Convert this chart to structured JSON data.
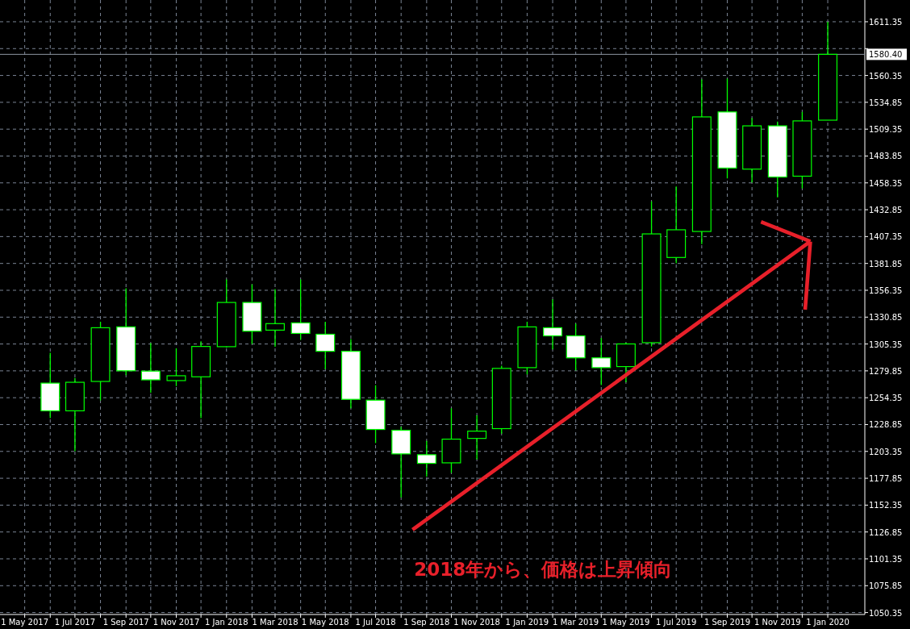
{
  "chart_data": {
    "type": "candlestick",
    "color": "#00ff00",
    "x": [
      "2017-06",
      "2017-07",
      "2017-08",
      "2017-09",
      "2017-10",
      "2017-11",
      "2017-12",
      "2018-01",
      "2018-02",
      "2018-03",
      "2018-04",
      "2018-05",
      "2018-06",
      "2018-07",
      "2018-08",
      "2018-09",
      "2018-10",
      "2018-11",
      "2018-12",
      "2019-01",
      "2019-02",
      "2019-03",
      "2019-04",
      "2019-05",
      "2019-06",
      "2019-07",
      "2019-08",
      "2019-09",
      "2019-10",
      "2019-11",
      "2019-12",
      "2020-01"
    ],
    "ohlc": [
      [
        1268.2,
        1296.9,
        1235.0,
        1241.9
      ],
      [
        1241.9,
        1273.1,
        1203.6,
        1269.0
      ],
      [
        1269.8,
        1326.5,
        1251.8,
        1320.8
      ],
      [
        1321.6,
        1358.2,
        1275.7,
        1279.9
      ],
      [
        1279.6,
        1306.1,
        1259.0,
        1271.3
      ],
      [
        1270.6,
        1301.2,
        1265.4,
        1275.2
      ],
      [
        1274.2,
        1307.9,
        1235.0,
        1303.0
      ],
      [
        1302.8,
        1366.6,
        1302.0,
        1344.8
      ],
      [
        1344.8,
        1362.0,
        1305.3,
        1317.5
      ],
      [
        1318.5,
        1357.4,
        1302.8,
        1324.7
      ],
      [
        1325.4,
        1366.6,
        1309.2,
        1315.4
      ],
      [
        1314.6,
        1326.5,
        1281.4,
        1298.4
      ],
      [
        1298.4,
        1310.0,
        1244.3,
        1252.8
      ],
      [
        1252.0,
        1266.2,
        1211.3,
        1224.2
      ],
      [
        1223.4,
        1226.8,
        1159.8,
        1201.0
      ],
      [
        1200.2,
        1213.4,
        1179.4,
        1192.0
      ],
      [
        1192.5,
        1244.3,
        1183.0,
        1215.0
      ],
      [
        1215.7,
        1237.6,
        1195.8,
        1222.6
      ],
      [
        1225.0,
        1284.8,
        1220.3,
        1282.2
      ],
      [
        1282.9,
        1326.5,
        1276.5,
        1321.6
      ],
      [
        1320.8,
        1347.8,
        1300.2,
        1313.1
      ],
      [
        1313.1,
        1324.7,
        1280.3,
        1292.2
      ],
      [
        1292.2,
        1311.0,
        1266.4,
        1282.9
      ],
      [
        1283.9,
        1306.5,
        1269.0,
        1305.4
      ],
      [
        1306.6,
        1440.8,
        1303.0,
        1409.9
      ],
      [
        1387.5,
        1454.9,
        1381.9,
        1413.8
      ],
      [
        1412.2,
        1556.5,
        1400.1,
        1521.0
      ],
      [
        1525.7,
        1557.3,
        1462.6,
        1472.4
      ],
      [
        1471.4,
        1519.8,
        1458.8,
        1512.5
      ],
      [
        1512.5,
        1516.6,
        1444.6,
        1463.9
      ],
      [
        1464.7,
        1525.7,
        1453.1,
        1517.2
      ],
      [
        1517.9,
        1611.3,
        1517.9,
        1580.4
      ]
    ],
    "xlim": [
      "2017-04-01",
      "2020-02-15"
    ],
    "ylim": [
      1048.5,
      1632.0
    ],
    "xticks": [
      {
        "value": "2017-05",
        "label": "1 May 2017"
      },
      {
        "value": "2017-06",
        "label": null
      },
      {
        "value": "2017-07",
        "label": "1 Jul 2017"
      },
      {
        "value": "2017-08",
        "label": null
      },
      {
        "value": "2017-09",
        "label": "1 Sep 2017"
      },
      {
        "value": "2017-10",
        "label": null
      },
      {
        "value": "2017-11",
        "label": "1 Nov 2017"
      },
      {
        "value": "2017-12",
        "label": null
      },
      {
        "value": "2018-01",
        "label": "1 Jan 2018"
      },
      {
        "value": "2018-02",
        "label": null
      },
      {
        "value": "2018-03",
        "label": "1 Mar 2018"
      },
      {
        "value": "2018-04",
        "label": null
      },
      {
        "value": "2018-05",
        "label": "1 May 2018"
      },
      {
        "value": "2018-06",
        "label": null
      },
      {
        "value": "2018-07",
        "label": "1 Jul 2018"
      },
      {
        "value": "2018-08",
        "label": null
      },
      {
        "value": "2018-09",
        "label": "1 Sep 2018"
      },
      {
        "value": "2018-10",
        "label": null
      },
      {
        "value": "2018-11",
        "label": "1 Nov 2018"
      },
      {
        "value": "2018-12",
        "label": null
      },
      {
        "value": "2019-01",
        "label": "1 Jan 2019"
      },
      {
        "value": "2019-02",
        "label": null
      },
      {
        "value": "2019-03",
        "label": "1 Mar 2019"
      },
      {
        "value": "2019-04",
        "label": null
      },
      {
        "value": "2019-05",
        "label": "1 May 2019"
      },
      {
        "value": "2019-06",
        "label": null
      },
      {
        "value": "2019-07",
        "label": "1 Jul 2019"
      },
      {
        "value": "2019-08",
        "label": null
      },
      {
        "value": "2019-09",
        "label": "1 Sep 2019"
      },
      {
        "value": "2019-10",
        "label": null
      },
      {
        "value": "2019-11",
        "label": "1 Nov 2019"
      },
      {
        "value": "2019-12",
        "label": null
      },
      {
        "value": "2020-01",
        "label": "1 Jan 2020"
      }
    ],
    "yticks": [
      {
        "value": 1050.35,
        "label": "1050.35"
      },
      {
        "value": 1075.85,
        "label": "1075.85"
      },
      {
        "value": 1101.35,
        "label": "1101.35"
      },
      {
        "value": 1126.85,
        "label": "1126.85"
      },
      {
        "value": 1152.35,
        "label": "1152.35"
      },
      {
        "value": 1177.85,
        "label": "1177.85"
      },
      {
        "value": 1203.35,
        "label": "1203.35"
      },
      {
        "value": 1228.85,
        "label": "1228.85"
      },
      {
        "value": 1254.35,
        "label": "1254.35"
      },
      {
        "value": 1279.85,
        "label": "1279.85"
      },
      {
        "value": 1305.35,
        "label": "1305.35"
      },
      {
        "value": 1330.85,
        "label": "1330.85"
      },
      {
        "value": 1356.35,
        "label": "1356.35"
      },
      {
        "value": 1381.85,
        "label": "1381.85"
      },
      {
        "value": 1407.35,
        "label": "1407.35"
      },
      {
        "value": 1432.85,
        "label": "1432.85"
      },
      {
        "value": 1458.35,
        "label": "1458.35"
      },
      {
        "value": 1483.85,
        "label": "1483.85"
      },
      {
        "value": 1509.35,
        "label": "1509.35"
      },
      {
        "value": 1534.85,
        "label": "1534.85"
      },
      {
        "value": 1560.35,
        "label": "1560.35"
      },
      {
        "value": 1585.85,
        "label": null
      },
      {
        "value": 1611.35,
        "label": "1611.35"
      }
    ],
    "grid": true,
    "ref_lines": [
      {
        "axis": "y",
        "value": 1580.4,
        "label": "1580.40",
        "color": "#8c94a0"
      }
    ],
    "annotations": [
      "2018年から、価格は上昇傾向"
    ]
  }
}
